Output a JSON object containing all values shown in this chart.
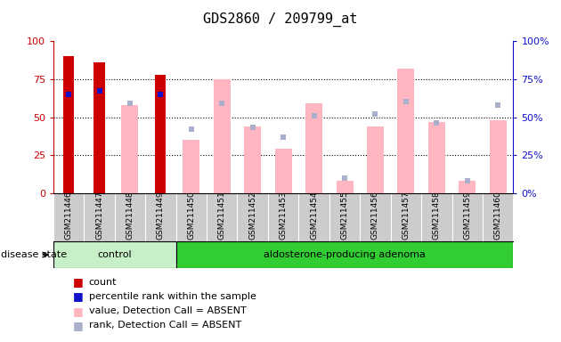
{
  "title": "GDS2860 / 209799_at",
  "samples": [
    "GSM211446",
    "GSM211447",
    "GSM211448",
    "GSM211449",
    "GSM211450",
    "GSM211451",
    "GSM211452",
    "GSM211453",
    "GSM211454",
    "GSM211455",
    "GSM211456",
    "GSM211457",
    "GSM211458",
    "GSM211459",
    "GSM211460"
  ],
  "count": [
    90,
    86,
    0,
    78,
    0,
    0,
    0,
    0,
    0,
    0,
    0,
    0,
    0,
    0,
    0
  ],
  "percentile_rank": [
    65,
    67,
    0,
    65,
    0,
    0,
    0,
    0,
    0,
    0,
    0,
    0,
    0,
    0,
    0
  ],
  "value_absent": [
    0,
    0,
    58,
    0,
    35,
    75,
    44,
    29,
    59,
    8,
    44,
    82,
    47,
    8,
    48
  ],
  "rank_absent": [
    0,
    0,
    59,
    0,
    42,
    59,
    43,
    37,
    51,
    10,
    52,
    60,
    46,
    8,
    58
  ],
  "control_count": 4,
  "adenoma_count": 11,
  "ylim": [
    0,
    100
  ],
  "red_color": "#cc0000",
  "blue_color": "#1111cc",
  "pink_color": "#ffb6c1",
  "lavender_color": "#aab0cc",
  "control_light": "#c8f0c8",
  "control_dark": "#32cd32",
  "adenoma_color": "#32cd32",
  "gray_bg": "#cccccc"
}
